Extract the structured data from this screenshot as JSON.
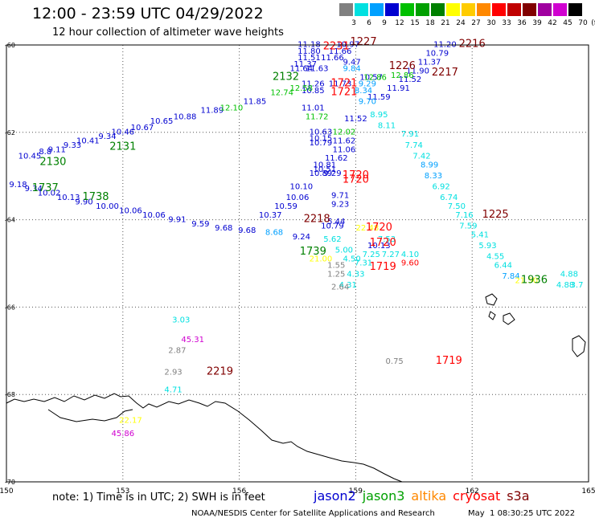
{
  "header": {
    "title": "12:00 - 23:59 UTC 04/29/2022",
    "subtitle": "12 hour collection of altimeter wave heights"
  },
  "legend": {
    "unit": "(ft)",
    "bins": [
      {
        "label": "3",
        "color": "#808080"
      },
      {
        "label": "6",
        "color": "#00e0e0"
      },
      {
        "label": "9",
        "color": "#00a0ff"
      },
      {
        "label": "12",
        "color": "#0000d0"
      },
      {
        "label": "15",
        "color": "#00c000"
      },
      {
        "label": "18",
        "color": "#00a000"
      },
      {
        "label": "21",
        "color": "#008000"
      },
      {
        "label": "24",
        "color": "#ffff00"
      },
      {
        "label": "27",
        "color": "#ffcc00"
      },
      {
        "label": "30",
        "color": "#ff8800"
      },
      {
        "label": "33",
        "color": "#ff0000"
      },
      {
        "label": "36",
        "color": "#c00000"
      },
      {
        "label": "39",
        "color": "#800000"
      },
      {
        "label": "42",
        "color": "#a000a0"
      },
      {
        "label": "45",
        "color": "#d000d0"
      },
      {
        "label": "70",
        "color": "#000000"
      }
    ]
  },
  "map": {
    "lon_ticks": [
      "150",
      "153",
      "156",
      "159",
      "162",
      "165"
    ],
    "lat_ticks": [
      "-60",
      "-62",
      "-64",
      "-66",
      "-68",
      "-70"
    ],
    "obs": [
      {
        "t": "11.18",
        "lon": 157.8,
        "lat": -60.05,
        "c": "#0000d0"
      },
      {
        "t": "10.97",
        "lon": 158.8,
        "lat": -60.05,
        "c": "#0000d0"
      },
      {
        "t": "11.80",
        "lon": 157.8,
        "lat": -60.2,
        "c": "#0000d0"
      },
      {
        "t": "11.66",
        "lon": 158.6,
        "lat": -60.2,
        "c": "#0000d0"
      },
      {
        "t": "11.51",
        "lon": 157.8,
        "lat": -60.35,
        "c": "#0000d0"
      },
      {
        "t": "11.66",
        "lon": 158.4,
        "lat": -60.35,
        "c": "#0000d0"
      },
      {
        "t": "11.37",
        "lon": 157.7,
        "lat": -60.5,
        "c": "#0000d0"
      },
      {
        "t": "9.47",
        "lon": 158.9,
        "lat": -60.45,
        "c": "#0000d0"
      },
      {
        "t": "11.64",
        "lon": 157.6,
        "lat": -60.6,
        "c": "#0000d0"
      },
      {
        "t": "11.63",
        "lon": 158.0,
        "lat": -60.6,
        "c": "#0000d0"
      },
      {
        "t": "9.84",
        "lon": 158.9,
        "lat": -60.6,
        "c": "#00a0ff"
      },
      {
        "t": "10.57",
        "lon": 159.4,
        "lat": -60.8,
        "c": "#0000d0"
      },
      {
        "t": "11.26",
        "lon": 157.9,
        "lat": -60.95,
        "c": "#0000d0"
      },
      {
        "t": "10.85",
        "lon": 157.9,
        "lat": -61.1,
        "c": "#0000d0"
      },
      {
        "t": "9.29",
        "lon": 159.3,
        "lat": -60.95,
        "c": "#00a0ff"
      },
      {
        "t": "8.34",
        "lon": 159.2,
        "lat": -61.1,
        "c": "#00a0ff"
      },
      {
        "t": "11.20",
        "lon": 161.3,
        "lat": -60.05,
        "c": "#0000d0"
      },
      {
        "t": "10.79",
        "lon": 161.1,
        "lat": -60.25,
        "c": "#0000d0"
      },
      {
        "t": "11.37",
        "lon": 160.9,
        "lat": -60.45,
        "c": "#0000d0"
      },
      {
        "t": "11.90",
        "lon": 160.6,
        "lat": -60.65,
        "c": "#0000d0"
      },
      {
        "t": "11.52",
        "lon": 160.4,
        "lat": -60.85,
        "c": "#0000d0"
      },
      {
        "t": "11.91",
        "lon": 160.1,
        "lat": -61.05,
        "c": "#0000d0"
      },
      {
        "t": "11.59",
        "lon": 159.6,
        "lat": -61.25,
        "c": "#0000d0"
      },
      {
        "t": "9.70",
        "lon": 159.3,
        "lat": -61.35,
        "c": "#00a0ff"
      },
      {
        "t": "11.01",
        "lon": 157.9,
        "lat": -61.5,
        "c": "#0000d0"
      },
      {
        "t": "11.72",
        "lon": 158.0,
        "lat": -61.7,
        "c": "#00c000"
      },
      {
        "t": "11.52",
        "lon": 159.0,
        "lat": -61.75,
        "c": "#0000d0"
      },
      {
        "t": "8.95",
        "lon": 159.6,
        "lat": -61.65,
        "c": "#00e0e0"
      },
      {
        "t": "8.11",
        "lon": 159.8,
        "lat": -61.9,
        "c": "#00e0e0"
      },
      {
        "t": "12.02",
        "lon": 158.7,
        "lat": -62.05,
        "c": "#00c000"
      },
      {
        "t": "10.63",
        "lon": 158.1,
        "lat": -62.05,
        "c": "#0000d0"
      },
      {
        "t": "10.15",
        "lon": 158.1,
        "lat": -62.2,
        "c": "#0000d0"
      },
      {
        "t": "10.79",
        "lon": 158.1,
        "lat": -62.3,
        "c": "#0000d0"
      },
      {
        "t": "11.62",
        "lon": 158.7,
        "lat": -62.25,
        "c": "#0000d0"
      },
      {
        "t": "11.06",
        "lon": 158.7,
        "lat": -62.45,
        "c": "#0000d0"
      },
      {
        "t": "11.62",
        "lon": 158.5,
        "lat": -62.65,
        "c": "#0000d0"
      },
      {
        "t": "10.81",
        "lon": 158.2,
        "lat": -62.8,
        "c": "#0000d0"
      },
      {
        "t": "10.51",
        "lon": 158.2,
        "lat": -62.9,
        "c": "#0000d0"
      },
      {
        "t": "10.89",
        "lon": 158.1,
        "lat": -63.0,
        "c": "#0000d0"
      },
      {
        "t": "9.29",
        "lon": 158.4,
        "lat": -63.0,
        "c": "#0000d0"
      },
      {
        "t": "10.10",
        "lon": 157.6,
        "lat": -63.3,
        "c": "#0000d0"
      },
      {
        "t": "10.06",
        "lon": 157.5,
        "lat": -63.55,
        "c": "#0000d0"
      },
      {
        "t": "9.71",
        "lon": 158.6,
        "lat": -63.5,
        "c": "#0000d0"
      },
      {
        "t": "9.23",
        "lon": 158.6,
        "lat": -63.7,
        "c": "#0000d0"
      },
      {
        "t": "10.59",
        "lon": 157.2,
        "lat": -63.75,
        "c": "#0000d0"
      },
      {
        "t": "10.37",
        "lon": 156.8,
        "lat": -63.95,
        "c": "#0000d0"
      },
      {
        "t": "10.79",
        "lon": 158.4,
        "lat": -64.2,
        "c": "#0000d0"
      },
      {
        "t": "7.91",
        "lon": 160.4,
        "lat": -62.1,
        "c": "#00e0e0"
      },
      {
        "t": "7.74",
        "lon": 160.5,
        "lat": -62.35,
        "c": "#00e0e0"
      },
      {
        "t": "7.42",
        "lon": 160.7,
        "lat": -62.6,
        "c": "#00e0e0"
      },
      {
        "t": "8.99",
        "lon": 160.9,
        "lat": -62.8,
        "c": "#00a0ff"
      },
      {
        "t": "8.33",
        "lon": 161.0,
        "lat": -63.05,
        "c": "#00a0ff"
      },
      {
        "t": "6.92",
        "lon": 161.2,
        "lat": -63.3,
        "c": "#00e0e0"
      },
      {
        "t": "6.74",
        "lon": 161.4,
        "lat": -63.55,
        "c": "#00e0e0"
      },
      {
        "t": "7.50",
        "lon": 161.6,
        "lat": -63.75,
        "c": "#00e0e0"
      },
      {
        "t": "7.16",
        "lon": 161.8,
        "lat": -63.95,
        "c": "#00e0e0"
      },
      {
        "t": "7.59",
        "lon": 161.9,
        "lat": -64.2,
        "c": "#00e0e0"
      },
      {
        "t": "5.41",
        "lon": 162.2,
        "lat": -64.4,
        "c": "#00e0e0"
      },
      {
        "t": "5.93",
        "lon": 162.4,
        "lat": -64.65,
        "c": "#00e0e0"
      },
      {
        "t": "4.55",
        "lon": 162.6,
        "lat": -64.9,
        "c": "#00e0e0"
      },
      {
        "t": "6.44",
        "lon": 162.8,
        "lat": -65.1,
        "c": "#00e0e0"
      },
      {
        "t": "7.84",
        "lon": 163.0,
        "lat": -65.35,
        "c": "#00a0ff"
      },
      {
        "t": "21.50",
        "lon": 163.4,
        "lat": -65.45,
        "c": "#ffff00"
      },
      {
        "t": "4.88",
        "lon": 164.5,
        "lat": -65.3,
        "c": "#00e0e0"
      },
      {
        "t": "4.88",
        "lon": 164.4,
        "lat": -65.55,
        "c": "#00e0e0"
      },
      {
        "t": "3.7",
        "lon": 164.7,
        "lat": -65.55,
        "c": "#00e0e0"
      },
      {
        "t": "10.45",
        "lon": 150.6,
        "lat": -62.6,
        "c": "#0000d0"
      },
      {
        "t": "8.8",
        "lon": 151.0,
        "lat": -62.5,
        "c": "#0000d0"
      },
      {
        "t": "9.11",
        "lon": 151.3,
        "lat": -62.45,
        "c": "#0000d0"
      },
      {
        "t": "9.33",
        "lon": 151.7,
        "lat": -62.35,
        "c": "#0000d0"
      },
      {
        "t": "10.41",
        "lon": 152.1,
        "lat": -62.25,
        "c": "#0000d0"
      },
      {
        "t": "9.34",
        "lon": 152.6,
        "lat": -62.15,
        "c": "#0000d0"
      },
      {
        "t": "10.46",
        "lon": 153.0,
        "lat": -62.05,
        "c": "#0000d0"
      },
      {
        "t": "10.67",
        "lon": 153.5,
        "lat": -61.95,
        "c": "#0000d0"
      },
      {
        "t": "10.65",
        "lon": 154.0,
        "lat": -61.8,
        "c": "#0000d0"
      },
      {
        "t": "10.88",
        "lon": 154.6,
        "lat": -61.7,
        "c": "#0000d0"
      },
      {
        "t": "11.89",
        "lon": 155.3,
        "lat": -61.55,
        "c": "#0000d0"
      },
      {
        "t": "12.10",
        "lon": 155.8,
        "lat": -61.5,
        "c": "#00c000"
      },
      {
        "t": "11.85",
        "lon": 156.4,
        "lat": -61.35,
        "c": "#0000d0"
      },
      {
        "t": "12.74",
        "lon": 157.1,
        "lat": -61.15,
        "c": "#00c000"
      },
      {
        "t": "12.58",
        "lon": 157.6,
        "lat": -61.05,
        "c": "#00c000"
      },
      {
        "t": "11.73",
        "lon": 158.6,
        "lat": -60.95,
        "c": "#0000d0"
      },
      {
        "t": "12.86",
        "lon": 159.5,
        "lat": -60.8,
        "c": "#00c000"
      },
      {
        "t": "12.86",
        "lon": 160.2,
        "lat": -60.75,
        "c": "#00c000"
      },
      {
        "t": "9.18",
        "lon": 150.3,
        "lat": -63.25,
        "c": "#0000d0"
      },
      {
        "t": "9.34",
        "lon": 150.7,
        "lat": -63.35,
        "c": "#0000d0"
      },
      {
        "t": "10.02",
        "lon": 151.1,
        "lat": -63.45,
        "c": "#0000d0"
      },
      {
        "t": "10.13",
        "lon": 151.6,
        "lat": -63.55,
        "c": "#0000d0"
      },
      {
        "t": "9.90",
        "lon": 152.0,
        "lat": -63.65,
        "c": "#0000d0"
      },
      {
        "t": "10.00",
        "lon": 152.6,
        "lat": -63.75,
        "c": "#0000d0"
      },
      {
        "t": "10.06",
        "lon": 153.2,
        "lat": -63.85,
        "c": "#0000d0"
      },
      {
        "t": "10.06",
        "lon": 153.8,
        "lat": -63.95,
        "c": "#0000d0"
      },
      {
        "t": "9.91",
        "lon": 154.4,
        "lat": -64.05,
        "c": "#0000d0"
      },
      {
        "t": "9.59",
        "lon": 155.0,
        "lat": -64.15,
        "c": "#0000d0"
      },
      {
        "t": "9.68",
        "lon": 155.6,
        "lat": -64.25,
        "c": "#0000d0"
      },
      {
        "t": "9.68",
        "lon": 156.2,
        "lat": -64.3,
        "c": "#0000d0"
      },
      {
        "t": "8.68",
        "lon": 156.9,
        "lat": -64.35,
        "c": "#00a0ff"
      },
      {
        "t": "9.24",
        "lon": 157.6,
        "lat": -64.45,
        "c": "#0000d0"
      },
      {
        "t": "5.62",
        "lon": 158.4,
        "lat": -64.5,
        "c": "#00e0e0"
      },
      {
        "t": "22.48",
        "lon": 159.3,
        "lat": -64.25,
        "c": "#ffff00"
      },
      {
        "t": "10.13",
        "lon": 159.6,
        "lat": -64.65,
        "c": "#0000d0"
      },
      {
        "t": "7.53",
        "lon": 159.8,
        "lat": -64.5,
        "c": "#00e0e0"
      },
      {
        "t": "7.25",
        "lon": 159.4,
        "lat": -64.85,
        "c": "#00e0e0"
      },
      {
        "t": "7.27",
        "lon": 159.9,
        "lat": -64.85,
        "c": "#00e0e0"
      },
      {
        "t": "4.10",
        "lon": 160.4,
        "lat": -64.85,
        "c": "#00e0e0"
      },
      {
        "t": "7.31",
        "lon": 159.2,
        "lat": -65.05,
        "c": "#00e0e0"
      },
      {
        "t": "4.33",
        "lon": 159.0,
        "lat": -65.3,
        "c": "#00e0e0"
      },
      {
        "t": "4.31",
        "lon": 158.8,
        "lat": -65.55,
        "c": "#00e0e0"
      },
      {
        "t": "5.00",
        "lon": 158.7,
        "lat": -64.75,
        "c": "#00e0e0"
      },
      {
        "t": "4.50",
        "lon": 158.9,
        "lat": -64.95,
        "c": "#00e0e0"
      },
      {
        "t": "21.00",
        "lon": 158.1,
        "lat": -64.95,
        "c": "#ffff00"
      },
      {
        "t": "1.55",
        "lon": 158.5,
        "lat": -65.1,
        "c": "#808080"
      },
      {
        "t": "1.25",
        "lon": 158.5,
        "lat": -65.3,
        "c": "#808080"
      },
      {
        "t": "2.64",
        "lon": 158.6,
        "lat": -65.6,
        "c": "#808080"
      },
      {
        "t": "3.03",
        "lon": 154.5,
        "lat": -66.35,
        "c": "#00e0e0"
      },
      {
        "t": "45.31",
        "lon": 154.8,
        "lat": -66.8,
        "c": "#d000d0"
      },
      {
        "t": "2.87",
        "lon": 154.4,
        "lat": -67.05,
        "c": "#808080"
      },
      {
        "t": "2.93",
        "lon": 154.3,
        "lat": -67.55,
        "c": "#808080"
      },
      {
        "t": "4.71",
        "lon": 154.3,
        "lat": -67.95,
        "c": "#00e0e0"
      },
      {
        "t": "0.75",
        "lon": 160.0,
        "lat": -67.3,
        "c": "#808080"
      },
      {
        "t": "22.17",
        "lon": 153.2,
        "lat": -68.65,
        "c": "#ffff00"
      },
      {
        "t": "45.86",
        "lon": 153.0,
        "lat": -68.95,
        "c": "#d000d0"
      },
      {
        "t": "9.60",
        "lon": 160.4,
        "lat": -65.05,
        "c": "#ff0000"
      },
      {
        "t": "5.44",
        "lon": 158.5,
        "lat": -64.1,
        "c": "#0000d0"
      }
    ],
    "times": [
      {
        "t": "1227",
        "lon": 159.2,
        "lat": -60.0,
        "c": "#800000"
      },
      {
        "t": "2216",
        "lon": 162.0,
        "lat": -60.05,
        "c": "#800000"
      },
      {
        "t": "2231",
        "lon": 158.5,
        "lat": -60.1,
        "c": "#ff0000"
      },
      {
        "t": "1226",
        "lon": 160.2,
        "lat": -60.55,
        "c": "#800000"
      },
      {
        "t": "2217",
        "lon": 161.3,
        "lat": -60.7,
        "c": "#800000"
      },
      {
        "t": "2132",
        "lon": 157.2,
        "lat": -60.8,
        "c": "#008000"
      },
      {
        "t": "1721",
        "lon": 158.7,
        "lat": -60.95,
        "c": "#ff0000"
      },
      {
        "t": "1721",
        "lon": 158.7,
        "lat": -61.15,
        "c": "#ff0000"
      },
      {
        "t": "2130",
        "lon": 151.2,
        "lat": -62.75,
        "c": "#008000"
      },
      {
        "t": "2131",
        "lon": 153.0,
        "lat": -62.4,
        "c": "#008000"
      },
      {
        "t": "1737",
        "lon": 151.0,
        "lat": -63.35,
        "c": "#008000"
      },
      {
        "t": "1738",
        "lon": 152.3,
        "lat": -63.55,
        "c": "#008000"
      },
      {
        "t": "1720",
        "lon": 159.0,
        "lat": -63.05,
        "c": "#ff0000"
      },
      {
        "t": "1720",
        "lon": 159.0,
        "lat": -63.15,
        "c": "#ff0000"
      },
      {
        "t": "2218",
        "lon": 158.0,
        "lat": -64.05,
        "c": "#800000"
      },
      {
        "t": "1720",
        "lon": 159.6,
        "lat": -64.25,
        "c": "#ff0000"
      },
      {
        "t": "1720",
        "lon": 159.7,
        "lat": -64.6,
        "c": "#ff0000"
      },
      {
        "t": "1739",
        "lon": 157.9,
        "lat": -64.8,
        "c": "#008000"
      },
      {
        "t": "1719",
        "lon": 159.7,
        "lat": -65.15,
        "c": "#ff0000"
      },
      {
        "t": "1225",
        "lon": 162.6,
        "lat": -63.95,
        "c": "#800000"
      },
      {
        "t": "1936",
        "lon": 163.6,
        "lat": -65.45,
        "c": "#008000"
      },
      {
        "t": "1719",
        "lon": 161.4,
        "lat": -67.3,
        "c": "#ff0000"
      },
      {
        "t": "2219",
        "lon": 155.5,
        "lat": -67.55,
        "c": "#800000"
      }
    ]
  },
  "footer": {
    "note": "note: 1) Time is in UTC; 2) SWH is in feet",
    "satellites": [
      {
        "name": "jason2",
        "color": "#0000d0"
      },
      {
        "name": "jason3",
        "color": "#00a000"
      },
      {
        "name": "altika",
        "color": "#ff8800"
      },
      {
        "name": "cryosat",
        "color": "#ff0000"
      },
      {
        "name": "s3a",
        "color": "#800000"
      }
    ],
    "credit": "NOAA/NESDIS Center for Satellite Applications and Research",
    "timestamp": "May  1 08:30:25 UTC 2022"
  }
}
